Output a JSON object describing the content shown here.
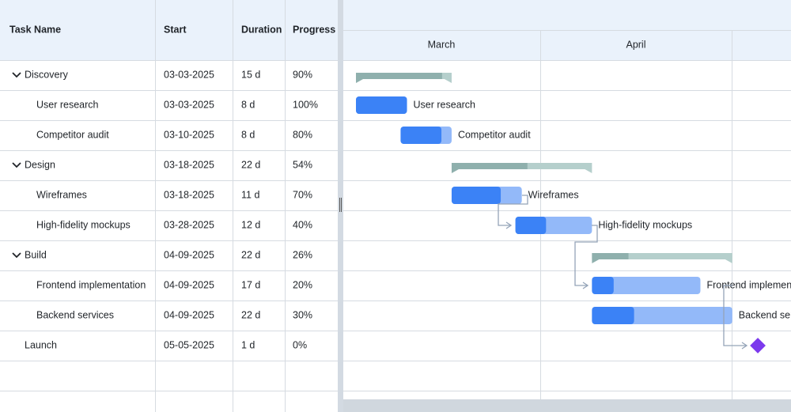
{
  "grid": {
    "columns": [
      "Task Name",
      "Start",
      "Duration",
      "Progress"
    ],
    "rows": [
      {
        "kind": "summary",
        "name": "Discovery",
        "start": "03-03-2025",
        "duration": "15 d",
        "progress": "90%"
      },
      {
        "kind": "task",
        "name": "User research",
        "start": "03-03-2025",
        "duration": "8 d",
        "progress": "100%"
      },
      {
        "kind": "task",
        "name": "Competitor audit",
        "start": "03-10-2025",
        "duration": "8 d",
        "progress": "80%"
      },
      {
        "kind": "summary",
        "name": "Design",
        "start": "03-18-2025",
        "duration": "22 d",
        "progress": "54%"
      },
      {
        "kind": "task",
        "name": "Wireframes",
        "start": "03-18-2025",
        "duration": "11 d",
        "progress": "70%"
      },
      {
        "kind": "task",
        "name": "High-fidelity mockups",
        "start": "03-28-2025",
        "duration": "12 d",
        "progress": "40%"
      },
      {
        "kind": "summary",
        "name": "Build",
        "start": "04-09-2025",
        "duration": "22 d",
        "progress": "26%"
      },
      {
        "kind": "task",
        "name": "Frontend implementation",
        "start": "04-09-2025",
        "duration": "17 d",
        "progress": "20%"
      },
      {
        "kind": "task",
        "name": "Backend services",
        "start": "04-09-2025",
        "duration": "22 d",
        "progress": "30%"
      },
      {
        "kind": "milestone",
        "name": "Launch",
        "start": "05-05-2025",
        "duration": "1 d",
        "progress": "0%"
      }
    ]
  },
  "timeline": {
    "months": [
      "March",
      "April"
    ]
  }
}
